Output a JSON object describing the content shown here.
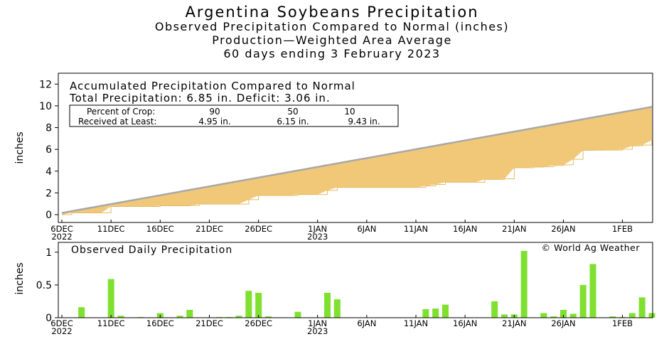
{
  "header": {
    "title": "Argentina Soybeans Precipitation",
    "subtitle1": "Observed Precipitation Compared to Normal (inches)",
    "subtitle2": "Production—Weighted Area Average",
    "subtitle3": "60 days ending 3 February 2023"
  },
  "colors": {
    "accumulated_fill": "#f0c878",
    "normal_line": "#a8a8a8",
    "daily_bar": "#80e030"
  },
  "chart_data": [
    {
      "type": "area",
      "title": "Accumulated Precipitation Compared to Normal",
      "info_line": "Total Precipitation: 6.85 in.     Deficit: 3.06 in.",
      "box": {
        "row1_label": "Percent of Crop:",
        "row1_values": [
          "90",
          "50",
          "10"
        ],
        "row2_label": "Received at Least:",
        "row2_values": [
          "4.95 in.",
          "6.15 in.",
          "9.43 in."
        ]
      },
      "ylabel": "inches",
      "ylim": [
        0,
        13
      ],
      "yticks": [
        "0",
        "2",
        "4",
        "6",
        "8",
        "10",
        "12"
      ],
      "xticks": [
        {
          "label": "6DEC",
          "label2": "2022",
          "day": 0
        },
        {
          "label": "11DEC",
          "day": 5
        },
        {
          "label": "16DEC",
          "day": 10
        },
        {
          "label": "21DEC",
          "day": 15
        },
        {
          "label": "26DEC",
          "day": 20
        },
        {
          "label": "1JAN",
          "label2": "2023",
          "day": 26
        },
        {
          "label": "6JAN",
          "day": 31
        },
        {
          "label": "11JAN",
          "day": 36
        },
        {
          "label": "16JAN",
          "day": 41
        },
        {
          "label": "21JAN",
          "day": 46
        },
        {
          "label": "26JAN",
          "day": 51
        },
        {
          "label": "1FEB",
          "day": 57
        }
      ],
      "normal": [
        0.16,
        9.91
      ],
      "observed": [
        0.0,
        0.16,
        0.16,
        0.16,
        0.16,
        0.75,
        0.75,
        0.75,
        0.75,
        0.75,
        0.82,
        0.82,
        0.82,
        0.85,
        0.97,
        0.97,
        0.97,
        0.97,
        0.97,
        1.38,
        1.76,
        1.76,
        1.76,
        1.76,
        1.85,
        1.85,
        1.85,
        2.23,
        2.51,
        2.51,
        2.51,
        2.51,
        2.51,
        2.51,
        2.51,
        2.51,
        2.51,
        2.64,
        2.78,
        2.98,
        2.98,
        2.98,
        2.98,
        3.24,
        3.24,
        3.29,
        4.31,
        4.31,
        4.38,
        4.4,
        4.52,
        4.58,
        5.09,
        5.91,
        5.93,
        5.94,
        5.94,
        6.01,
        6.32,
        6.39
      ],
      "final": 6.85
    },
    {
      "type": "bar",
      "title": "Observed Daily Precipitation",
      "copyright": "© World Ag Weather",
      "ylabel": "inches",
      "ylim": [
        0,
        1.15
      ],
      "yticks": [
        "0",
        "0.5",
        "1"
      ],
      "values": [
        0.0,
        0.0,
        0.16,
        0.0,
        0.0,
        0.59,
        0.03,
        0.0,
        0.01,
        0.0,
        0.07,
        0.0,
        0.03,
        0.12,
        0.0,
        0.0,
        0.01,
        0.01,
        0.03,
        0.41,
        0.38,
        0.02,
        0.0,
        0.0,
        0.09,
        0.0,
        0.0,
        0.38,
        0.28,
        0.0,
        0.0,
        0.0,
        0.0,
        0.0,
        0.0,
        0.0,
        0.0,
        0.13,
        0.14,
        0.2,
        0.0,
        0.0,
        0.0,
        0.0,
        0.25,
        0.05,
        0.05,
        1.02,
        0.0,
        0.07,
        0.02,
        0.12,
        0.06,
        0.5,
        0.82,
        0.0,
        0.02,
        0.01,
        0.07,
        0.31,
        0.07
      ]
    }
  ]
}
